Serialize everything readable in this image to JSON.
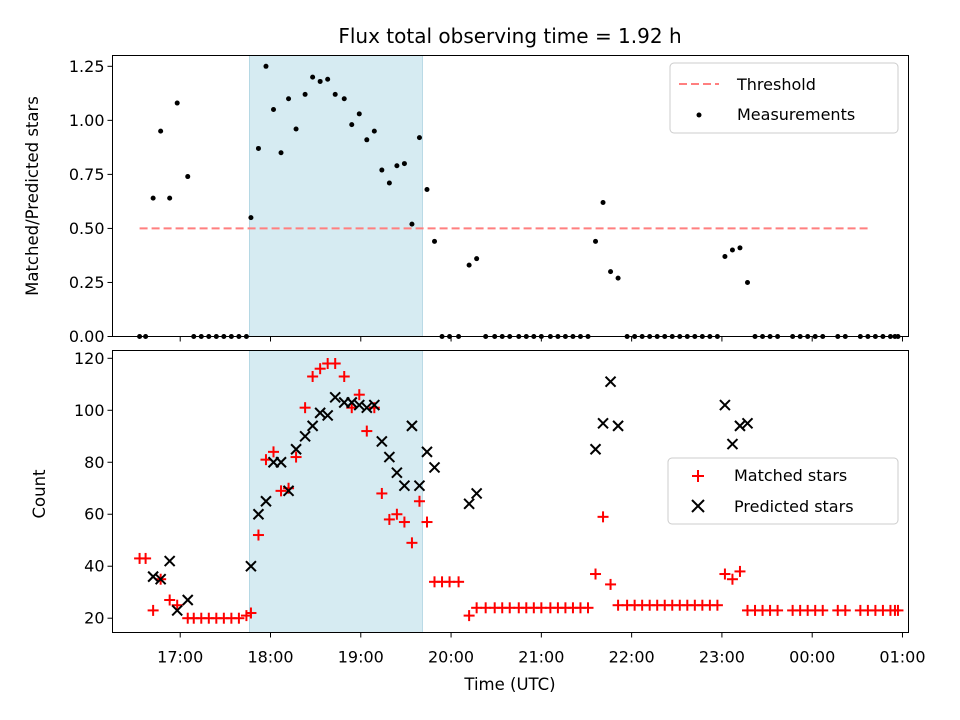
{
  "chart_data": [
    {
      "type": "scatter",
      "title": "Flux total observing time = 1.92 h",
      "xlabel": "",
      "ylabel": "Matched/Predicted stars",
      "xlim": [
        "16:15",
        "01:04"
      ],
      "ylim": [
        0,
        1.3
      ],
      "yticks": [
        "0.00",
        "0.25",
        "0.50",
        "0.75",
        "1.00",
        "1.25"
      ],
      "shaded_span": [
        "17:46",
        "19:41"
      ],
      "legend_position": "upper right",
      "series": [
        {
          "name": "Threshold",
          "kind": "dashed-line",
          "color": "#ff7f7f",
          "x": [
            "16:33",
            "00:39"
          ],
          "y": [
            0.5,
            0.5
          ]
        },
        {
          "name": "Measurements",
          "kind": "dots",
          "color": "#000000",
          "points": [
            [
              "16:33",
              0.0
            ],
            [
              "16:37",
              0.0
            ],
            [
              "16:42",
              0.64
            ],
            [
              "16:47",
              0.95
            ],
            [
              "16:53",
              0.64
            ],
            [
              "16:58",
              1.08
            ],
            [
              "17:05",
              0.74
            ],
            [
              "17:09",
              0.0
            ],
            [
              "17:14",
              0.0
            ],
            [
              "17:19",
              0.0
            ],
            [
              "17:24",
              0.0
            ],
            [
              "17:29",
              0.0
            ],
            [
              "17:34",
              0.0
            ],
            [
              "17:39",
              0.0
            ],
            [
              "17:44",
              0.0
            ],
            [
              "17:47",
              0.55
            ],
            [
              "17:52",
              0.87
            ],
            [
              "17:57",
              1.25
            ],
            [
              "18:02",
              1.05
            ],
            [
              "18:07",
              0.85
            ],
            [
              "18:12",
              1.1
            ],
            [
              "18:17",
              0.96
            ],
            [
              "18:23",
              1.12
            ],
            [
              "18:28",
              1.2
            ],
            [
              "18:33",
              1.18
            ],
            [
              "18:38",
              1.19
            ],
            [
              "18:43",
              1.12
            ],
            [
              "18:49",
              1.1
            ],
            [
              "18:54",
              0.98
            ],
            [
              "18:59",
              1.03
            ],
            [
              "19:04",
              0.91
            ],
            [
              "19:09",
              0.95
            ],
            [
              "19:14",
              0.77
            ],
            [
              "19:19",
              0.71
            ],
            [
              "19:24",
              0.79
            ],
            [
              "19:29",
              0.8
            ],
            [
              "19:34",
              0.52
            ],
            [
              "19:39",
              0.92
            ],
            [
              "19:44",
              0.68
            ],
            [
              "19:49",
              0.44
            ],
            [
              "19:54",
              0.0
            ],
            [
              "19:59",
              0.0
            ],
            [
              "20:05",
              0.0
            ],
            [
              "20:12",
              0.33
            ],
            [
              "20:17",
              0.36
            ],
            [
              "20:23",
              0.0
            ],
            [
              "20:29",
              0.0
            ],
            [
              "20:34",
              0.0
            ],
            [
              "20:39",
              0.0
            ],
            [
              "20:45",
              0.0
            ],
            [
              "20:50",
              0.0
            ],
            [
              "20:55",
              0.0
            ],
            [
              "21:00",
              0.0
            ],
            [
              "21:06",
              0.0
            ],
            [
              "21:11",
              0.0
            ],
            [
              "21:16",
              0.0
            ],
            [
              "21:21",
              0.0
            ],
            [
              "21:26",
              0.0
            ],
            [
              "21:31",
              0.0
            ],
            [
              "21:36",
              0.44
            ],
            [
              "21:41",
              0.62
            ],
            [
              "21:46",
              0.3
            ],
            [
              "21:51",
              0.27
            ],
            [
              "21:57",
              0.0
            ],
            [
              "22:02",
              0.0
            ],
            [
              "22:07",
              0.0
            ],
            [
              "22:12",
              0.0
            ],
            [
              "22:17",
              0.0
            ],
            [
              "22:22",
              0.0
            ],
            [
              "22:27",
              0.0
            ],
            [
              "22:32",
              0.0
            ],
            [
              "22:37",
              0.0
            ],
            [
              "22:42",
              0.0
            ],
            [
              "22:47",
              0.0
            ],
            [
              "22:52",
              0.0
            ],
            [
              "22:57",
              0.0
            ],
            [
              "23:02",
              0.37
            ],
            [
              "23:07",
              0.4
            ],
            [
              "23:12",
              0.41
            ],
            [
              "23:17",
              0.25
            ],
            [
              "23:22",
              0.0
            ],
            [
              "23:27",
              0.0
            ],
            [
              "23:32",
              0.0
            ],
            [
              "23:37",
              0.0
            ],
            [
              "23:47",
              0.0
            ],
            [
              "23:52",
              0.0
            ],
            [
              "23:57",
              0.0
            ],
            [
              "00:02",
              0.0
            ],
            [
              "00:07",
              0.0
            ],
            [
              "00:17",
              0.0
            ],
            [
              "00:22",
              0.0
            ],
            [
              "00:32",
              0.0
            ],
            [
              "00:37",
              0.0
            ],
            [
              "00:42",
              0.0
            ],
            [
              "00:47",
              0.0
            ],
            [
              "00:52",
              0.0
            ],
            [
              "00:55",
              0.0
            ],
            [
              "00:57",
              0.0
            ]
          ]
        }
      ]
    },
    {
      "type": "scatter",
      "title": "",
      "xlabel": "Time (UTC)",
      "ylabel": "Count",
      "xlim": [
        "16:15",
        "01:04"
      ],
      "ylim": [
        14.5,
        123
      ],
      "yticks": [
        "20",
        "40",
        "60",
        "80",
        "100",
        "120"
      ],
      "xticks": [
        "17:00",
        "18:00",
        "19:00",
        "20:00",
        "21:00",
        "22:00",
        "23:00",
        "00:00",
        "01:00"
      ],
      "shaded_span": [
        "17:46",
        "19:41"
      ],
      "legend_position": "center right",
      "series": [
        {
          "name": "Matched stars",
          "marker": "+",
          "color": "#ff0000",
          "points": [
            [
              "16:33",
              43
            ],
            [
              "16:37",
              43
            ],
            [
              "16:42",
              23
            ],
            [
              "16:47",
              35
            ],
            [
              "16:53",
              27
            ],
            [
              "16:58",
              25
            ],
            [
              "17:05",
              20
            ],
            [
              "17:09",
              20
            ],
            [
              "17:14",
              20
            ],
            [
              "17:19",
              20
            ],
            [
              "17:24",
              20
            ],
            [
              "17:29",
              20
            ],
            [
              "17:34",
              20
            ],
            [
              "17:39",
              20
            ],
            [
              "17:44",
              21
            ],
            [
              "17:47",
              22
            ],
            [
              "17:52",
              52
            ],
            [
              "17:57",
              81
            ],
            [
              "18:02",
              84
            ],
            [
              "18:07",
              69
            ],
            [
              "18:12",
              70
            ],
            [
              "18:17",
              82
            ],
            [
              "18:23",
              101
            ],
            [
              "18:28",
              113
            ],
            [
              "18:33",
              116
            ],
            [
              "18:38",
              118
            ],
            [
              "18:43",
              118
            ],
            [
              "18:49",
              113
            ],
            [
              "18:54",
              101
            ],
            [
              "18:59",
              106
            ],
            [
              "19:04",
              92
            ],
            [
              "19:09",
              101
            ],
            [
              "19:14",
              68
            ],
            [
              "19:19",
              58
            ],
            [
              "19:24",
              60
            ],
            [
              "19:29",
              57
            ],
            [
              "19:34",
              49
            ],
            [
              "19:39",
              65
            ],
            [
              "19:44",
              57
            ],
            [
              "19:49",
              34
            ],
            [
              "19:54",
              34
            ],
            [
              "19:59",
              34
            ],
            [
              "20:05",
              34
            ],
            [
              "20:12",
              21
            ],
            [
              "20:17",
              24
            ],
            [
              "20:23",
              24
            ],
            [
              "20:29",
              24
            ],
            [
              "20:34",
              24
            ],
            [
              "20:39",
              24
            ],
            [
              "20:45",
              24
            ],
            [
              "20:50",
              24
            ],
            [
              "20:55",
              24
            ],
            [
              "21:00",
              24
            ],
            [
              "21:06",
              24
            ],
            [
              "21:11",
              24
            ],
            [
              "21:16",
              24
            ],
            [
              "21:21",
              24
            ],
            [
              "21:26",
              24
            ],
            [
              "21:31",
              24
            ],
            [
              "21:36",
              37
            ],
            [
              "21:41",
              59
            ],
            [
              "21:46",
              33
            ],
            [
              "21:51",
              25
            ],
            [
              "21:57",
              25
            ],
            [
              "22:02",
              25
            ],
            [
              "22:07",
              25
            ],
            [
              "22:12",
              25
            ],
            [
              "22:17",
              25
            ],
            [
              "22:22",
              25
            ],
            [
              "22:27",
              25
            ],
            [
              "22:32",
              25
            ],
            [
              "22:37",
              25
            ],
            [
              "22:42",
              25
            ],
            [
              "22:47",
              25
            ],
            [
              "22:52",
              25
            ],
            [
              "22:57",
              25
            ],
            [
              "23:02",
              37
            ],
            [
              "23:07",
              35
            ],
            [
              "23:12",
              38
            ],
            [
              "23:17",
              23
            ],
            [
              "23:22",
              23
            ],
            [
              "23:27",
              23
            ],
            [
              "23:32",
              23
            ],
            [
              "23:37",
              23
            ],
            [
              "23:47",
              23
            ],
            [
              "23:52",
              23
            ],
            [
              "23:57",
              23
            ],
            [
              "00:02",
              23
            ],
            [
              "00:07",
              23
            ],
            [
              "00:17",
              23
            ],
            [
              "00:22",
              23
            ],
            [
              "00:32",
              23
            ],
            [
              "00:37",
              23
            ],
            [
              "00:42",
              23
            ],
            [
              "00:47",
              23
            ],
            [
              "00:52",
              23
            ],
            [
              "00:55",
              23
            ],
            [
              "00:57",
              23
            ]
          ]
        },
        {
          "name": "Predicted stars",
          "marker": "x",
          "color": "#000000",
          "points": [
            [
              "16:42",
              36
            ],
            [
              "16:47",
              35
            ],
            [
              "16:53",
              42
            ],
            [
              "16:58",
              23
            ],
            [
              "17:05",
              27
            ],
            [
              "17:47",
              40
            ],
            [
              "17:52",
              60
            ],
            [
              "17:57",
              65
            ],
            [
              "18:02",
              80
            ],
            [
              "18:07",
              80
            ],
            [
              "18:12",
              69
            ],
            [
              "18:17",
              85
            ],
            [
              "18:23",
              90
            ],
            [
              "18:28",
              94
            ],
            [
              "18:33",
              99
            ],
            [
              "18:38",
              98
            ],
            [
              "18:43",
              105
            ],
            [
              "18:49",
              103
            ],
            [
              "18:54",
              103
            ],
            [
              "18:59",
              102
            ],
            [
              "19:04",
              101
            ],
            [
              "19:09",
              102
            ],
            [
              "19:14",
              88
            ],
            [
              "19:19",
              82
            ],
            [
              "19:24",
              76
            ],
            [
              "19:29",
              71
            ],
            [
              "19:34",
              94
            ],
            [
              "19:39",
              71
            ],
            [
              "19:44",
              84
            ],
            [
              "19:49",
              78
            ],
            [
              "20:12",
              64
            ],
            [
              "20:17",
              68
            ],
            [
              "21:36",
              85
            ],
            [
              "21:41",
              95
            ],
            [
              "21:46",
              111
            ],
            [
              "21:51",
              94
            ],
            [
              "23:02",
              102
            ],
            [
              "23:07",
              87
            ],
            [
              "23:12",
              94
            ],
            [
              "23:17",
              95
            ]
          ]
        }
      ]
    }
  ]
}
